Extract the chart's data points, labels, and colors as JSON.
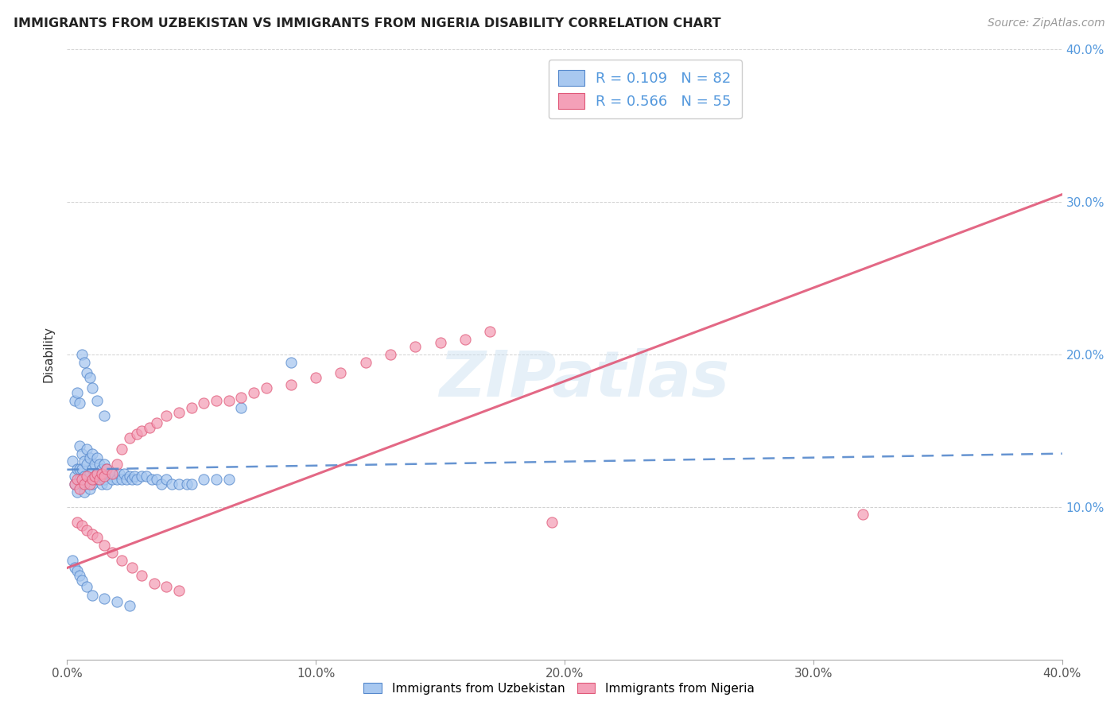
{
  "title": "IMMIGRANTS FROM UZBEKISTAN VS IMMIGRANTS FROM NIGERIA DISABILITY CORRELATION CHART",
  "source": "Source: ZipAtlas.com",
  "ylabel": "Disability",
  "xlim": [
    0.0,
    0.4
  ],
  "ylim": [
    0.0,
    0.4
  ],
  "xticks": [
    0.0,
    0.1,
    0.2,
    0.3,
    0.4
  ],
  "yticks": [
    0.0,
    0.1,
    0.2,
    0.3,
    0.4
  ],
  "xtick_labels": [
    "0.0%",
    "10.0%",
    "20.0%",
    "30.0%",
    "40.0%"
  ],
  "ytick_labels_right": [
    "",
    "10.0%",
    "20.0%",
    "30.0%",
    "40.0%"
  ],
  "legend_label_blue": "Immigrants from Uzbekistan",
  "legend_label_pink": "Immigrants from Nigeria",
  "R_blue": 0.109,
  "N_blue": 82,
  "R_pink": 0.566,
  "N_pink": 55,
  "blue_color": "#a8c8f0",
  "pink_color": "#f4a0b8",
  "blue_line_color": "#5588cc",
  "pink_line_color": "#e05878",
  "watermark": "ZIPatlas",
  "blue_scatter_x": [
    0.002,
    0.003,
    0.003,
    0.004,
    0.004,
    0.005,
    0.005,
    0.005,
    0.006,
    0.006,
    0.006,
    0.007,
    0.007,
    0.007,
    0.008,
    0.008,
    0.008,
    0.009,
    0.009,
    0.009,
    0.01,
    0.01,
    0.01,
    0.011,
    0.011,
    0.012,
    0.012,
    0.013,
    0.013,
    0.014,
    0.014,
    0.015,
    0.015,
    0.016,
    0.016,
    0.017,
    0.018,
    0.019,
    0.02,
    0.021,
    0.022,
    0.023,
    0.024,
    0.025,
    0.026,
    0.027,
    0.028,
    0.03,
    0.032,
    0.034,
    0.036,
    0.038,
    0.04,
    0.042,
    0.045,
    0.048,
    0.05,
    0.055,
    0.06,
    0.065,
    0.003,
    0.004,
    0.005,
    0.006,
    0.007,
    0.008,
    0.009,
    0.01,
    0.012,
    0.015,
    0.002,
    0.003,
    0.004,
    0.005,
    0.006,
    0.008,
    0.01,
    0.015,
    0.02,
    0.025,
    0.07,
    0.09
  ],
  "blue_scatter_y": [
    0.13,
    0.12,
    0.115,
    0.125,
    0.11,
    0.14,
    0.125,
    0.118,
    0.135,
    0.125,
    0.115,
    0.13,
    0.12,
    0.11,
    0.138,
    0.128,
    0.118,
    0.132,
    0.122,
    0.112,
    0.135,
    0.125,
    0.115,
    0.128,
    0.118,
    0.132,
    0.122,
    0.128,
    0.118,
    0.125,
    0.115,
    0.128,
    0.118,
    0.125,
    0.115,
    0.122,
    0.118,
    0.122,
    0.118,
    0.122,
    0.118,
    0.122,
    0.118,
    0.12,
    0.118,
    0.12,
    0.118,
    0.12,
    0.12,
    0.118,
    0.118,
    0.115,
    0.118,
    0.115,
    0.115,
    0.115,
    0.115,
    0.118,
    0.118,
    0.118,
    0.17,
    0.175,
    0.168,
    0.2,
    0.195,
    0.188,
    0.185,
    0.178,
    0.17,
    0.16,
    0.065,
    0.06,
    0.058,
    0.055,
    0.052,
    0.048,
    0.042,
    0.04,
    0.038,
    0.035,
    0.165,
    0.195
  ],
  "pink_scatter_x": [
    0.003,
    0.004,
    0.005,
    0.006,
    0.007,
    0.008,
    0.009,
    0.01,
    0.011,
    0.012,
    0.013,
    0.014,
    0.015,
    0.016,
    0.018,
    0.02,
    0.022,
    0.025,
    0.028,
    0.03,
    0.033,
    0.036,
    0.04,
    0.045,
    0.05,
    0.055,
    0.06,
    0.065,
    0.07,
    0.075,
    0.08,
    0.09,
    0.1,
    0.11,
    0.12,
    0.13,
    0.14,
    0.15,
    0.16,
    0.17,
    0.004,
    0.006,
    0.008,
    0.01,
    0.012,
    0.015,
    0.018,
    0.022,
    0.026,
    0.03,
    0.035,
    0.04,
    0.045,
    0.195,
    0.32
  ],
  "pink_scatter_y": [
    0.115,
    0.118,
    0.112,
    0.118,
    0.115,
    0.12,
    0.115,
    0.118,
    0.12,
    0.122,
    0.118,
    0.122,
    0.12,
    0.125,
    0.122,
    0.128,
    0.138,
    0.145,
    0.148,
    0.15,
    0.152,
    0.155,
    0.16,
    0.162,
    0.165,
    0.168,
    0.17,
    0.17,
    0.172,
    0.175,
    0.178,
    0.18,
    0.185,
    0.188,
    0.195,
    0.2,
    0.205,
    0.208,
    0.21,
    0.215,
    0.09,
    0.088,
    0.085,
    0.082,
    0.08,
    0.075,
    0.07,
    0.065,
    0.06,
    0.055,
    0.05,
    0.048,
    0.045,
    0.09,
    0.095
  ],
  "blue_trend": [
    0.0,
    0.4,
    0.1245,
    0.135
  ],
  "pink_trend": [
    0.0,
    0.4,
    0.06,
    0.305
  ]
}
